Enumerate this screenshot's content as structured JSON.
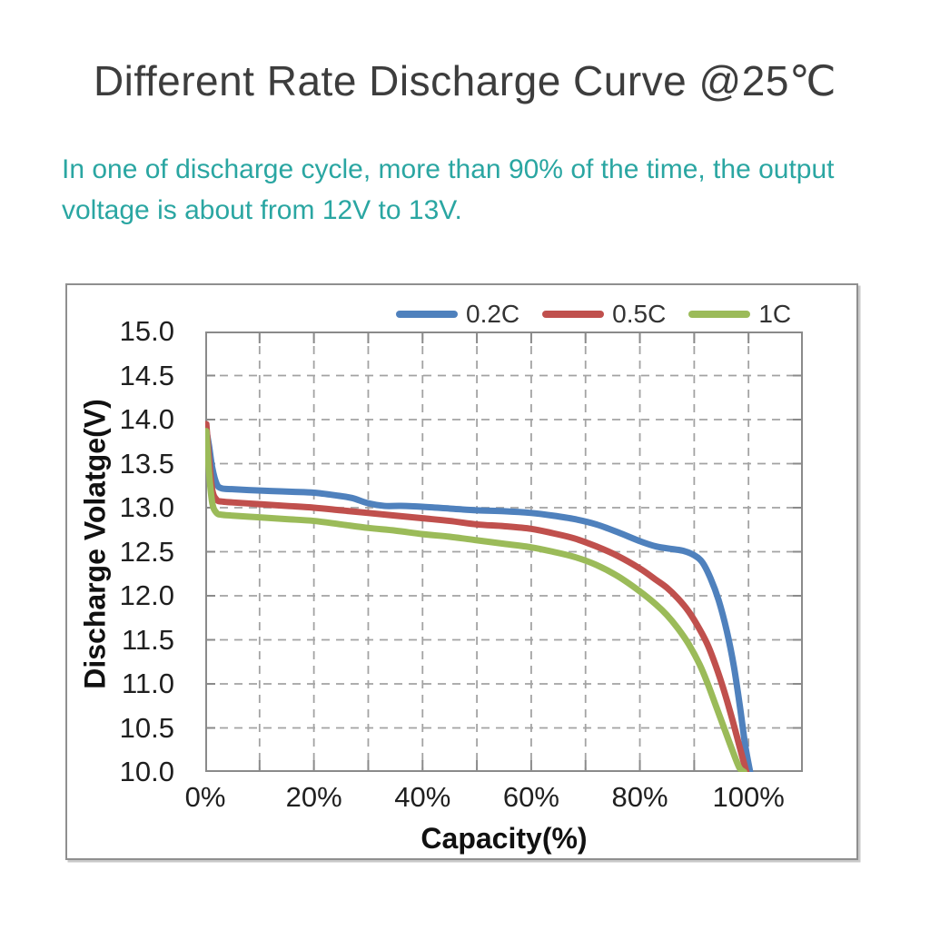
{
  "page": {
    "title": "Different Rate Discharge Curve @25℃",
    "subtitle_lines": [
      "In one of discharge cycle, more than 90% of the time, the output",
      "voltage is about from 12V to 13V."
    ]
  },
  "colors": {
    "title_text": "#3d3d3d",
    "subtitle_text": "#2aa6a2",
    "grid": "#a3a3a3",
    "axis": "#8a8a8a",
    "tick_text": "#1f1f1f",
    "series_blue": "#4f81bd",
    "series_red": "#c0504d",
    "series_green": "#9bbb59"
  },
  "chart_data": {
    "type": "line",
    "title": "",
    "xlabel": "Capacity(%)",
    "ylabel": "Discharge Volatge(V)",
    "xlim": [
      0,
      110
    ],
    "ylim": [
      10,
      15
    ],
    "x_ticks": [
      0,
      20,
      40,
      60,
      80,
      100
    ],
    "x_tick_labels": [
      "0%",
      "20%",
      "40%",
      "60%",
      "80%",
      "100%"
    ],
    "y_ticks": [
      15.0,
      14.5,
      14.0,
      13.5,
      13.0,
      12.5,
      12.0,
      11.5,
      11.0,
      10.5,
      10.0
    ],
    "y_tick_labels": [
      "15.0",
      "14.5",
      "14.0",
      "13.5",
      "13.0",
      "12.5",
      "12.0",
      "11.5",
      "11.0",
      "10.5",
      "10.0"
    ],
    "grid_x": [
      10,
      20,
      30,
      40,
      50,
      60,
      70,
      80,
      90,
      100
    ],
    "grid_y": [
      10.5,
      11.0,
      11.5,
      12.0,
      12.5,
      13.0,
      13.5,
      14.0,
      14.5
    ],
    "grid": "dashed",
    "legend_position": "top",
    "series": [
      {
        "name": "0.2C",
        "color": "#4f81bd",
        "points": [
          [
            0.2,
            13.88
          ],
          [
            0.7,
            13.7
          ],
          [
            1.3,
            13.45
          ],
          [
            2.1,
            13.27
          ],
          [
            3,
            13.22
          ],
          [
            5,
            13.21
          ],
          [
            8,
            13.2
          ],
          [
            12,
            13.19
          ],
          [
            16,
            13.18
          ],
          [
            20,
            13.17
          ],
          [
            24,
            13.14
          ],
          [
            27,
            13.11
          ],
          [
            30,
            13.05
          ],
          [
            33,
            13.02
          ],
          [
            36,
            13.02
          ],
          [
            40,
            13.01
          ],
          [
            45,
            12.99
          ],
          [
            50,
            12.97
          ],
          [
            55,
            12.96
          ],
          [
            60,
            12.94
          ],
          [
            64,
            12.91
          ],
          [
            68,
            12.87
          ],
          [
            72,
            12.81
          ],
          [
            76,
            12.72
          ],
          [
            80,
            12.62
          ],
          [
            83,
            12.56
          ],
          [
            86,
            12.53
          ],
          [
            88,
            12.51
          ],
          [
            90,
            12.46
          ],
          [
            91.5,
            12.38
          ],
          [
            93,
            12.2
          ],
          [
            94.5,
            11.95
          ],
          [
            96,
            11.6
          ],
          [
            97.3,
            11.2
          ],
          [
            98.4,
            10.75
          ],
          [
            99.4,
            10.3
          ],
          [
            100.3,
            10.0
          ]
        ]
      },
      {
        "name": "0.5C",
        "color": "#c0504d",
        "points": [
          [
            0.2,
            13.95
          ],
          [
            0.7,
            13.55
          ],
          [
            1.3,
            13.2
          ],
          [
            2.1,
            13.09
          ],
          [
            3,
            13.07
          ],
          [
            5,
            13.06
          ],
          [
            10,
            13.04
          ],
          [
            15,
            13.02
          ],
          [
            20,
            13.0
          ],
          [
            25,
            12.97
          ],
          [
            30,
            12.94
          ],
          [
            35,
            12.91
          ],
          [
            40,
            12.88
          ],
          [
            45,
            12.85
          ],
          [
            50,
            12.81
          ],
          [
            55,
            12.79
          ],
          [
            60,
            12.76
          ],
          [
            64,
            12.71
          ],
          [
            68,
            12.65
          ],
          [
            72,
            12.56
          ],
          [
            76,
            12.45
          ],
          [
            80,
            12.31
          ],
          [
            83,
            12.18
          ],
          [
            85,
            12.09
          ],
          [
            87,
            11.97
          ],
          [
            89,
            11.82
          ],
          [
            91,
            11.62
          ],
          [
            92.5,
            11.44
          ],
          [
            94,
            11.2
          ],
          [
            95.5,
            10.92
          ],
          [
            97,
            10.6
          ],
          [
            98.3,
            10.3
          ],
          [
            99.6,
            10.0
          ]
        ]
      },
      {
        "name": "1C",
        "color": "#9bbb59",
        "points": [
          [
            0.2,
            13.87
          ],
          [
            0.7,
            13.4
          ],
          [
            1.3,
            13.05
          ],
          [
            2.1,
            12.94
          ],
          [
            3,
            12.92
          ],
          [
            5,
            12.91
          ],
          [
            10,
            12.89
          ],
          [
            15,
            12.87
          ],
          [
            20,
            12.85
          ],
          [
            25,
            12.81
          ],
          [
            30,
            12.77
          ],
          [
            35,
            12.74
          ],
          [
            40,
            12.7
          ],
          [
            45,
            12.67
          ],
          [
            50,
            12.63
          ],
          [
            55,
            12.59
          ],
          [
            60,
            12.55
          ],
          [
            64,
            12.5
          ],
          [
            68,
            12.44
          ],
          [
            72,
            12.35
          ],
          [
            76,
            12.22
          ],
          [
            80,
            12.05
          ],
          [
            83,
            11.9
          ],
          [
            85,
            11.78
          ],
          [
            87,
            11.63
          ],
          [
            89,
            11.45
          ],
          [
            91,
            11.22
          ],
          [
            92.5,
            11.0
          ],
          [
            94,
            10.75
          ],
          [
            95.5,
            10.5
          ],
          [
            97,
            10.25
          ],
          [
            98.3,
            10.05
          ],
          [
            99.2,
            10.0
          ]
        ]
      }
    ]
  }
}
